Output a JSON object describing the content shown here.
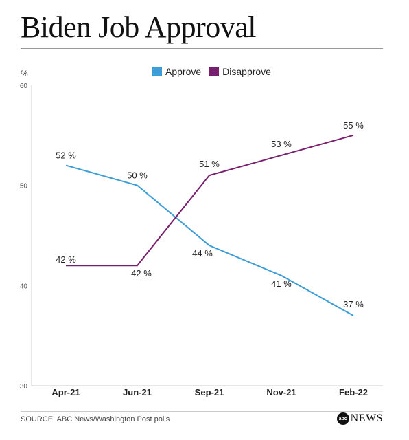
{
  "title": "Biden Job Approval",
  "unit_label": "%",
  "source": "SOURCE: ABC News/Washington Post polls",
  "logo": {
    "mark": "abc",
    "text": "NEWS"
  },
  "colors": {
    "approve": "#3d9dd6",
    "disapprove": "#7a1f6e",
    "axis": "#cccccc",
    "text": "#222222"
  },
  "chart_data": {
    "type": "line",
    "title": "Biden Job Approval",
    "ylabel": "%",
    "xlabel": "",
    "categories": [
      "Apr-21",
      "Jun-21",
      "Sep-21",
      "Nov-21",
      "Feb-22"
    ],
    "ylim": [
      30,
      60
    ],
    "yticks": [
      30,
      40,
      50,
      60
    ],
    "grid": false,
    "legend": "top-center",
    "series": [
      {
        "name": "Approve",
        "color": "#3d9dd6",
        "values": [
          52,
          50,
          44,
          41,
          37
        ],
        "labels": [
          "52 %",
          "50 %",
          "44 %",
          "41 %",
          "37 %"
        ]
      },
      {
        "name": "Disapprove",
        "color": "#7a1f6e",
        "values": [
          42,
          42,
          51,
          53,
          55
        ],
        "labels": [
          "42 %",
          "42 %",
          "51 %",
          "53 %",
          "55 %"
        ]
      }
    ]
  }
}
